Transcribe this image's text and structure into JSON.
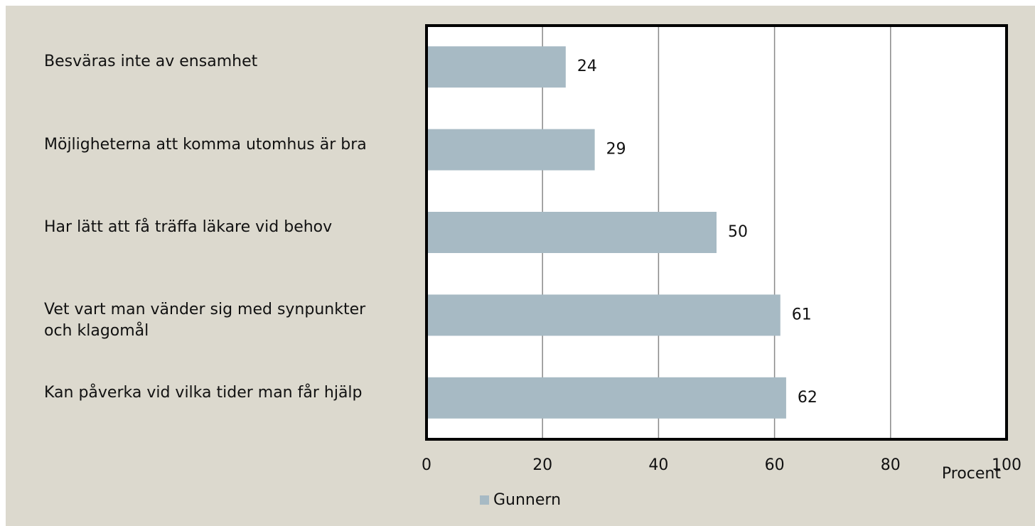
{
  "chart_data": {
    "type": "bar",
    "orientation": "horizontal",
    "categories": [
      "Besväras inte av ensamhet",
      "Möjligheterna att komma utomhus är bra",
      "Har lätt att få träffa läkare vid behov",
      "Vet vart man vänder sig med synpunkter och klagomål",
      "Kan påverka vid vilka tider man får hjälp"
    ],
    "series": [
      {
        "name": "Gunnern",
        "color": "#a7bac4",
        "values": [
          24,
          29,
          50,
          61,
          62
        ]
      }
    ],
    "xlim": [
      0,
      100
    ],
    "xticks": [
      0,
      20,
      40,
      60,
      80,
      100
    ],
    "grid": true,
    "x_label": "Procent",
    "legend": "bottom",
    "data_labels": true
  }
}
